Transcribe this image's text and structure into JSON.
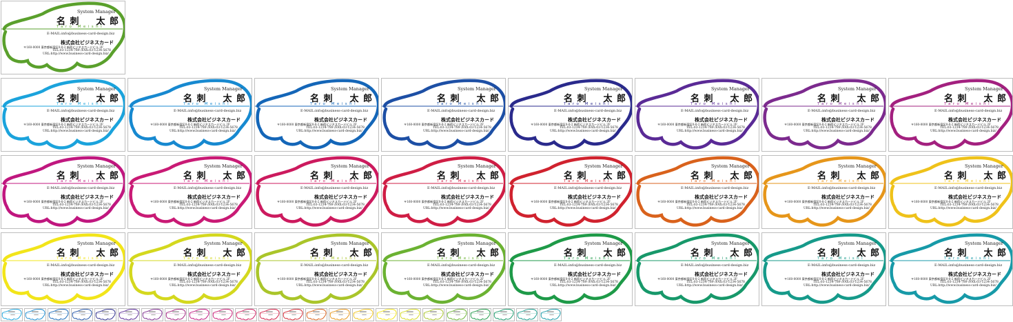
{
  "card_text": {
    "role": "System Manager",
    "name_family": "名 刺",
    "name_given": "太 郎",
    "name_roman": "Taro Meishi",
    "email": "E-MAIL:info@business-card-design.biz",
    "company": "株式会社ビジネスカード",
    "address": "〒160-0000 東京都新宿区0-0-2 新宿ビジネスカードビル 2F",
    "tel": "TEL:03-1234-789 /FAX:03-1234-5678",
    "url": "URL:http://www.business-card-design.biz/"
  },
  "cards": [
    {
      "color": "#5aa02c"
    },
    {
      "color": "#1ba3dc"
    },
    {
      "color": "#1789d0"
    },
    {
      "color": "#1466b8"
    },
    {
      "color": "#1d4fa5"
    },
    {
      "color": "#2a2a8c"
    },
    {
      "color": "#5a2a96"
    },
    {
      "color": "#7c2a8e"
    },
    {
      "color": "#a3207f"
    },
    {
      "color": "#c0177f"
    },
    {
      "color": "#c91a75"
    },
    {
      "color": "#cc1a5e"
    },
    {
      "color": "#cf1d44"
    },
    {
      "color": "#d0222e"
    },
    {
      "color": "#d9621c"
    },
    {
      "color": "#e6961a"
    },
    {
      "color": "#efc21a"
    },
    {
      "color": "#f2e51a"
    },
    {
      "color": "#d4d81e"
    },
    {
      "color": "#aac52a"
    },
    {
      "color": "#6bb232"
    },
    {
      "color": "#1e9a48"
    },
    {
      "color": "#17986a"
    },
    {
      "color": "#169a8a"
    },
    {
      "color": "#179aa8"
    }
  ],
  "thumbnails": [
    {
      "color": "#1ba3dc"
    },
    {
      "color": "#1789d0"
    },
    {
      "color": "#1466b8"
    },
    {
      "color": "#1d4fa5"
    },
    {
      "color": "#2a2a8c"
    },
    {
      "color": "#5a2a96"
    },
    {
      "color": "#7c2a8e"
    },
    {
      "color": "#a3207f"
    },
    {
      "color": "#c0177f"
    },
    {
      "color": "#c91a75"
    },
    {
      "color": "#cc1a5e"
    },
    {
      "color": "#cf1d44"
    },
    {
      "color": "#d0222e"
    },
    {
      "color": "#d9621c"
    },
    {
      "color": "#e6961a"
    },
    {
      "color": "#efc21a"
    },
    {
      "color": "#f2e51a"
    },
    {
      "color": "#d4d81e"
    },
    {
      "color": "#aac52a"
    },
    {
      "color": "#6bb232"
    },
    {
      "color": "#1e9a48"
    },
    {
      "color": "#17986a"
    },
    {
      "color": "#169a8a"
    },
    {
      "color": "#179aa8"
    }
  ]
}
